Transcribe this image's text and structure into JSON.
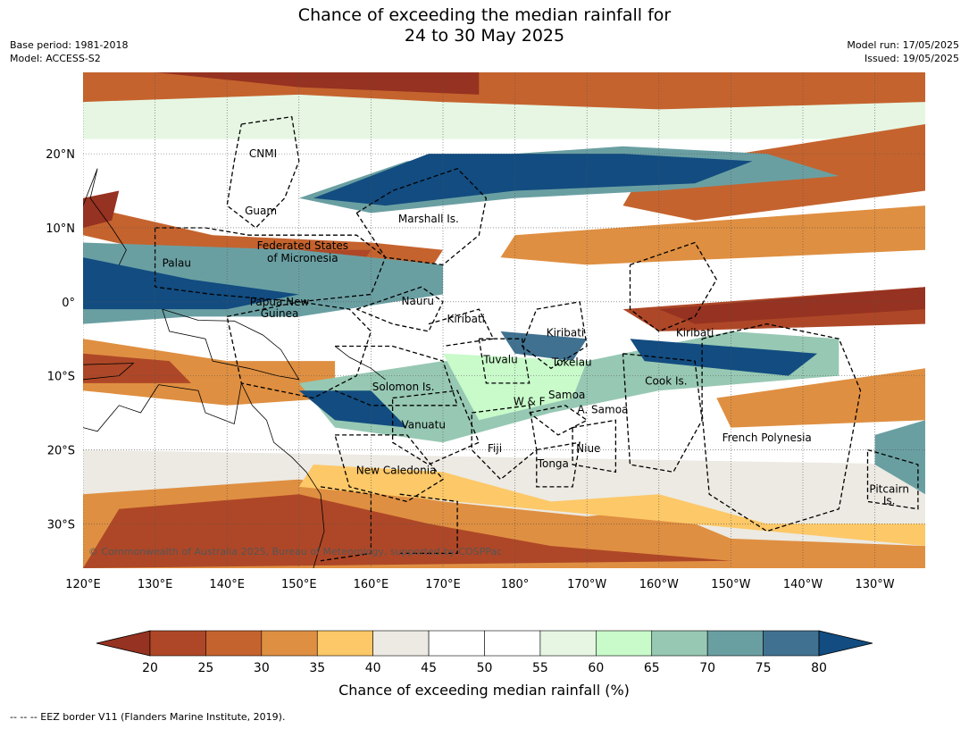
{
  "title": {
    "line1": "Chance of exceeding the median rainfall for",
    "line2": "24 to 30 May 2025"
  },
  "meta_left": {
    "base_period": "Base period: 1981-2018",
    "model": "Model: ACCESS-S2"
  },
  "meta_right": {
    "model_run": "Model run: 17/05/2025",
    "issued": "Issued: 19/05/2025"
  },
  "map": {
    "lon_range": [
      120,
      237
    ],
    "lat_range": [
      -36,
      31
    ],
    "lon_ticks": [
      {
        "value": 120,
        "label": "120°E"
      },
      {
        "value": 130,
        "label": "130°E"
      },
      {
        "value": 140,
        "label": "140°E"
      },
      {
        "value": 150,
        "label": "150°E"
      },
      {
        "value": 160,
        "label": "160°E"
      },
      {
        "value": 170,
        "label": "170°E"
      },
      {
        "value": 180,
        "label": "180°"
      },
      {
        "value": 190,
        "label": "170°W"
      },
      {
        "value": 200,
        "label": "160°W"
      },
      {
        "value": 210,
        "label": "150°W"
      },
      {
        "value": 220,
        "label": "140°W"
      },
      {
        "value": 230,
        "label": "130°W"
      }
    ],
    "lat_ticks": [
      {
        "value": 20,
        "label": "20°N"
      },
      {
        "value": 10,
        "label": "10°N"
      },
      {
        "value": 0,
        "label": "0°"
      },
      {
        "value": -10,
        "label": "10°S"
      },
      {
        "value": -20,
        "label": "20°S"
      },
      {
        "value": -30,
        "label": "30°S"
      }
    ],
    "grid": true,
    "copyright": "© Commonwealth of Australia 2025, Bureau of Meteorology, supported by COSPPac",
    "regions": [
      {
        "name": "CNMI",
        "lon": 145.0,
        "lat": 20.0
      },
      {
        "name": "Guam",
        "lon": 144.7,
        "lat": 12.3
      },
      {
        "name": "Marshall Is.",
        "lon": 168.0,
        "lat": 11.2
      },
      {
        "name": "Federated States",
        "lon": 150.5,
        "lat": 7.6
      },
      {
        "name": "of Micronesia",
        "lon": 150.5,
        "lat": 5.9
      },
      {
        "name": "Palau",
        "lon": 133.0,
        "lat": 5.2
      },
      {
        "name": "Papua New",
        "lon": 147.3,
        "lat": 0.0
      },
      {
        "name": "Guinea",
        "lon": 147.3,
        "lat": -1.6
      },
      {
        "name": "Nauru",
        "lon": 166.5,
        "lat": 0.1
      },
      {
        "name": "Kiribati",
        "lon": 173.2,
        "lat": -2.3
      },
      {
        "name": "Kiribati",
        "lon": 187.0,
        "lat": -4.2
      },
      {
        "name": "Kiribati",
        "lon": 205.0,
        "lat": -4.2
      },
      {
        "name": "Tuvalu",
        "lon": 178.0,
        "lat": -7.8
      },
      {
        "name": "Tokelau",
        "lon": 187.9,
        "lat": -8.2
      },
      {
        "name": "Cook Is.",
        "lon": 201.0,
        "lat": -10.7
      },
      {
        "name": "Solomon Is.",
        "lon": 164.5,
        "lat": -11.5
      },
      {
        "name": "Samoa",
        "lon": 187.2,
        "lat": -12.6
      },
      {
        "name": "W & F",
        "lon": 182.0,
        "lat": -13.5
      },
      {
        "name": "A. Samoa",
        "lon": 192.2,
        "lat": -14.6
      },
      {
        "name": "Vanuatu",
        "lon": 167.3,
        "lat": -16.6
      },
      {
        "name": "Fiji",
        "lon": 177.2,
        "lat": -19.8
      },
      {
        "name": "Niue",
        "lon": 190.2,
        "lat": -19.8
      },
      {
        "name": "Tonga",
        "lon": 185.3,
        "lat": -21.9
      },
      {
        "name": "French Polynesia",
        "lon": 215.0,
        "lat": -18.4
      },
      {
        "name": "New Caledonia",
        "lon": 163.5,
        "lat": -22.8
      },
      {
        "name": "Pitcairn",
        "lon": 232.0,
        "lat": -25.3
      },
      {
        "name": "Is.",
        "lon": 232.0,
        "lat": -26.9
      }
    ]
  },
  "colorbar": {
    "ticks": [
      "20",
      "25",
      "30",
      "35",
      "40",
      "45",
      "50",
      "55",
      "60",
      "65",
      "70",
      "75",
      "80"
    ],
    "label": "Chance of exceeding median rainfall (%)",
    "colors": {
      "under": "#963221",
      "bins": [
        "#AE4727",
        "#C5632E",
        "#DF8F41",
        "#FDC868",
        "#ECEAE3",
        "#FFFFFF",
        "#FFFFFF",
        "#E6F6E3",
        "#C8FACA",
        "#97C8B3",
        "#6A9FA2",
        "#407190"
      ],
      "over": "#124C80"
    }
  },
  "footer": {
    "legend_text": "--  --  -- EEZ border V11 (Flanders Marine Institute, 2019)."
  }
}
